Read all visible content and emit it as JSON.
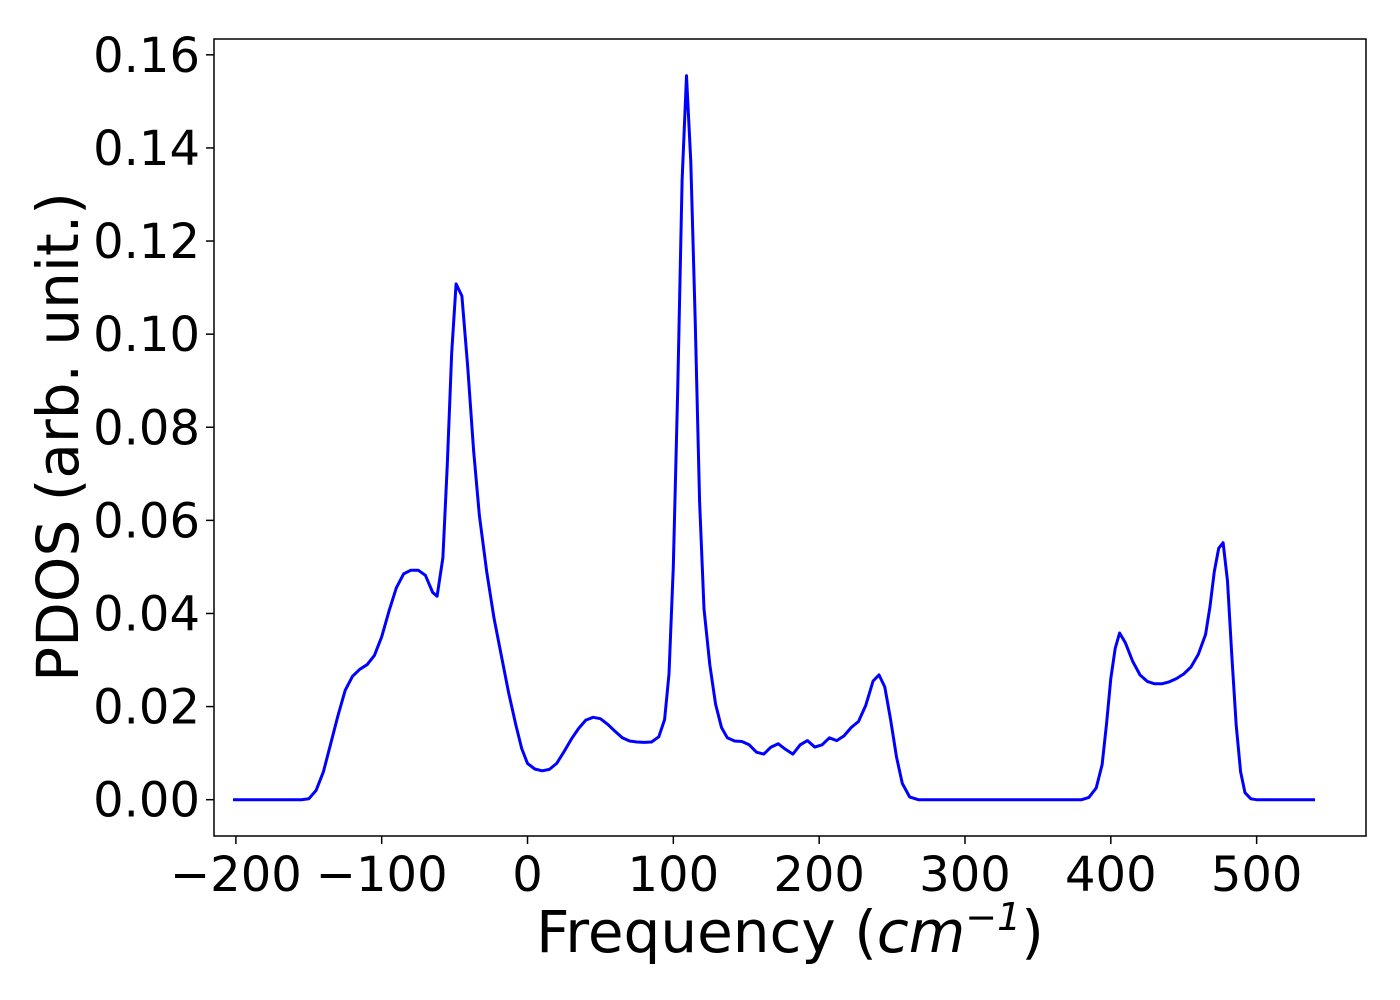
{
  "chart_data": {
    "type": "line",
    "xlabel": "Frequency",
    "xlabel_unit_open": "(",
    "xlabel_unit_base": "cm",
    "xlabel_unit_exp": "−1",
    "xlabel_unit_close": ")",
    "ylabel": "PDOS (arb. unit.)",
    "xlim": [
      -215,
      575
    ],
    "ylim": [
      -0.0078,
      0.1634
    ],
    "grid": false,
    "line_color": "#0000ff",
    "x_ticks": [
      {
        "value": -200,
        "label": "−200"
      },
      {
        "value": -100,
        "label": "−100"
      },
      {
        "value": 0,
        "label": "0"
      },
      {
        "value": 100,
        "label": "100"
      },
      {
        "value": 200,
        "label": "200"
      },
      {
        "value": 300,
        "label": "300"
      },
      {
        "value": 400,
        "label": "400"
      },
      {
        "value": 500,
        "label": "500"
      }
    ],
    "y_ticks": [
      {
        "value": 0.0,
        "label": "0.00"
      },
      {
        "value": 0.02,
        "label": "0.02"
      },
      {
        "value": 0.04,
        "label": "0.04"
      },
      {
        "value": 0.06,
        "label": "0.06"
      },
      {
        "value": 0.08,
        "label": "0.08"
      },
      {
        "value": 0.1,
        "label": "0.10"
      },
      {
        "value": 0.12,
        "label": "0.12"
      },
      {
        "value": 0.14,
        "label": "0.14"
      },
      {
        "value": 0.16,
        "label": "0.16"
      }
    ],
    "series": [
      {
        "points": [
          [
            -202,
            0.0
          ],
          [
            -155,
            0.0
          ],
          [
            -150,
            0.0002
          ],
          [
            -145,
            0.002
          ],
          [
            -140,
            0.006
          ],
          [
            -135,
            0.012
          ],
          [
            -130,
            0.018
          ],
          [
            -125,
            0.0235
          ],
          [
            -120,
            0.0265
          ],
          [
            -115,
            0.028
          ],
          [
            -110,
            0.029
          ],
          [
            -105,
            0.031
          ],
          [
            -100,
            0.035
          ],
          [
            -95,
            0.0405
          ],
          [
            -90,
            0.0455
          ],
          [
            -85,
            0.0485
          ],
          [
            -80,
            0.0493
          ],
          [
            -75,
            0.0493
          ],
          [
            -70,
            0.0482
          ],
          [
            -65,
            0.0445
          ],
          [
            -62,
            0.0437
          ],
          [
            -58,
            0.052
          ],
          [
            -55,
            0.072
          ],
          [
            -52,
            0.096
          ],
          [
            -49,
            0.1108
          ],
          [
            -45,
            0.1082
          ],
          [
            -41,
            0.093
          ],
          [
            -37,
            0.075
          ],
          [
            -33,
            0.061
          ],
          [
            -28,
            0.049
          ],
          [
            -23,
            0.039
          ],
          [
            -18,
            0.031
          ],
          [
            -13,
            0.023
          ],
          [
            -8,
            0.016
          ],
          [
            -4,
            0.011
          ],
          [
            0,
            0.0078
          ],
          [
            5,
            0.0066
          ],
          [
            10,
            0.0062
          ],
          [
            15,
            0.0065
          ],
          [
            20,
            0.0078
          ],
          [
            25,
            0.0103
          ],
          [
            30,
            0.013
          ],
          [
            35,
            0.0153
          ],
          [
            40,
            0.0171
          ],
          [
            45,
            0.0177
          ],
          [
            50,
            0.0174
          ],
          [
            55,
            0.0162
          ],
          [
            60,
            0.0147
          ],
          [
            65,
            0.0133
          ],
          [
            70,
            0.0126
          ],
          [
            75,
            0.0124
          ],
          [
            80,
            0.0123
          ],
          [
            85,
            0.0124
          ],
          [
            90,
            0.0135
          ],
          [
            94,
            0.0172
          ],
          [
            97,
            0.027
          ],
          [
            100,
            0.05
          ],
          [
            103,
            0.088
          ],
          [
            106,
            0.133
          ],
          [
            109,
            0.1555
          ],
          [
            112,
            0.137
          ],
          [
            115,
            0.103
          ],
          [
            118,
            0.064
          ],
          [
            121,
            0.041
          ],
          [
            125,
            0.029
          ],
          [
            129,
            0.0205
          ],
          [
            133,
            0.0155
          ],
          [
            137,
            0.0133
          ],
          [
            142,
            0.0126
          ],
          [
            147,
            0.0125
          ],
          [
            152,
            0.0118
          ],
          [
            157,
            0.0102
          ],
          [
            162,
            0.0098
          ],
          [
            167,
            0.0113
          ],
          [
            172,
            0.012
          ],
          [
            177,
            0.0108
          ],
          [
            182,
            0.0098
          ],
          [
            187,
            0.0118
          ],
          [
            192,
            0.0127
          ],
          [
            197,
            0.0113
          ],
          [
            202,
            0.0118
          ],
          [
            207,
            0.0133
          ],
          [
            212,
            0.0127
          ],
          [
            217,
            0.0137
          ],
          [
            222,
            0.0155
          ],
          [
            227,
            0.0168
          ],
          [
            232,
            0.0203
          ],
          [
            237,
            0.0255
          ],
          [
            241,
            0.0268
          ],
          [
            245,
            0.0242
          ],
          [
            249,
            0.0172
          ],
          [
            253,
            0.0092
          ],
          [
            257,
            0.0035
          ],
          [
            262,
            0.0006
          ],
          [
            268,
            0.0
          ],
          [
            380,
            0.0
          ],
          [
            385,
            0.0005
          ],
          [
            390,
            0.0025
          ],
          [
            394,
            0.0075
          ],
          [
            397,
            0.016
          ],
          [
            400,
            0.026
          ],
          [
            403,
            0.0325
          ],
          [
            406,
            0.0358
          ],
          [
            410,
            0.0337
          ],
          [
            415,
            0.0297
          ],
          [
            420,
            0.0268
          ],
          [
            425,
            0.0254
          ],
          [
            430,
            0.0249
          ],
          [
            435,
            0.0249
          ],
          [
            440,
            0.0253
          ],
          [
            445,
            0.026
          ],
          [
            450,
            0.027
          ],
          [
            455,
            0.0285
          ],
          [
            460,
            0.0312
          ],
          [
            465,
            0.0355
          ],
          [
            468,
            0.0415
          ],
          [
            471,
            0.049
          ],
          [
            474,
            0.054
          ],
          [
            477,
            0.0552
          ],
          [
            480,
            0.047
          ],
          [
            483,
            0.031
          ],
          [
            486,
            0.016
          ],
          [
            489,
            0.006
          ],
          [
            492,
            0.0015
          ],
          [
            496,
            0.0002
          ],
          [
            500,
            0.0
          ],
          [
            540,
            0.0
          ]
        ]
      }
    ]
  }
}
